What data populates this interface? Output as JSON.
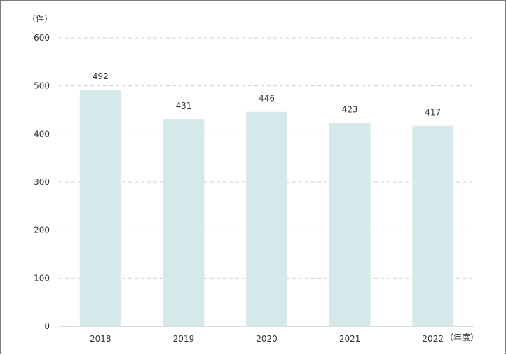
{
  "chart_data": {
    "type": "bar",
    "categories": [
      "2018",
      "2019",
      "2020",
      "2021",
      "2022"
    ],
    "values": [
      492,
      431,
      446,
      423,
      417
    ],
    "data_labels": [
      "492",
      "431",
      "446",
      "423",
      "417"
    ],
    "yticks": [
      "0",
      "100",
      "200",
      "300",
      "400",
      "500",
      "600"
    ],
    "ylim": [
      0,
      600
    ],
    "grid": true,
    "y_unit": "（件）",
    "x_unit": "（年度）",
    "title": "",
    "bar_color": "#d6e9ea",
    "grid_color": "#cfcfcf"
  }
}
